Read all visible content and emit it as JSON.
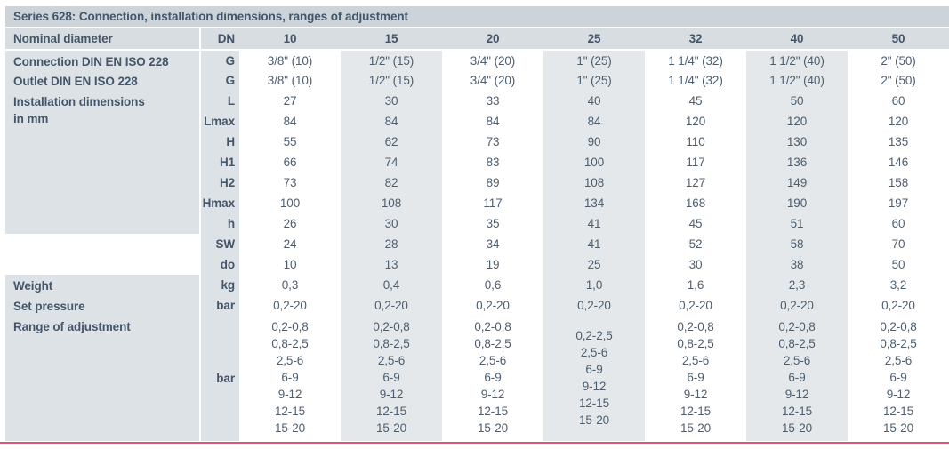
{
  "title": "Series 628: Connection, installation dimensions, ranges of adjustment",
  "columns_header": {
    "label": "Nominal diameter",
    "symbol": "DN",
    "values": [
      "10",
      "15",
      "20",
      "25",
      "32",
      "40",
      "50"
    ]
  },
  "rows": [
    {
      "label": "Connection DIN EN ISO 228",
      "symbol": "G",
      "values": [
        "3/8\" (10)",
        "1/2\" (15)",
        "3/4\" (20)",
        "1\" (25)",
        "1 1/4\" (32)",
        "1 1/2\" (40)",
        "2\" (50)"
      ]
    },
    {
      "label": "Outlet DIN EN ISO 228",
      "symbol": "G",
      "values": [
        "3/8\" (10)",
        "1/2\" (15)",
        "3/4\" (20)",
        "1\" (25)",
        "1 1/4\" (32)",
        "1 1/2\" (40)",
        "2\" (50)"
      ]
    },
    {
      "label_lines": [
        "Installation dimensions",
        "in mm"
      ],
      "label_rowspan": 7,
      "label_variant": "gray",
      "symbol": "L",
      "values": [
        "27",
        "30",
        "33",
        "40",
        "45",
        "50",
        "60"
      ]
    },
    {
      "symbol": "Lmax",
      "values": [
        "84",
        "84",
        "84",
        "84",
        "120",
        "120",
        "120"
      ]
    },
    {
      "symbol": "H",
      "values": [
        "55",
        "62",
        "73",
        "90",
        "110",
        "130",
        "135"
      ]
    },
    {
      "symbol": "H1",
      "values": [
        "66",
        "74",
        "83",
        "100",
        "117",
        "136",
        "146"
      ]
    },
    {
      "symbol": "H2",
      "values": [
        "73",
        "82",
        "89",
        "108",
        "127",
        "149",
        "158"
      ]
    },
    {
      "symbol": "Hmax",
      "values": [
        "100",
        "108",
        "117",
        "134",
        "168",
        "190",
        "197"
      ]
    },
    {
      "symbol": "h",
      "values": [
        "26",
        "30",
        "35",
        "41",
        "45",
        "51",
        "60"
      ]
    },
    {
      "label": "",
      "label_rowspan": 2,
      "label_variant": "white",
      "symbol": "SW",
      "values": [
        "24",
        "28",
        "34",
        "41",
        "52",
        "58",
        "70"
      ]
    },
    {
      "symbol": "do",
      "values": [
        "10",
        "13",
        "19",
        "25",
        "30",
        "38",
        "50"
      ]
    },
    {
      "label": "Weight",
      "symbol": "kg",
      "values": [
        "0,3",
        "0,4",
        "0,6",
        "1,0",
        "1,6",
        "2,3",
        "3,2"
      ]
    },
    {
      "label": "Set pressure",
      "symbol": "bar",
      "values": [
        "0,2-20",
        "0,2-20",
        "0,2-20",
        "0,2-20",
        "0,2-20",
        "0,2-20",
        "0,2-20"
      ]
    },
    {
      "label": "Range of adjustment",
      "symbol": "bar",
      "multiline": true,
      "values": [
        [
          "0,2-0,8",
          "0,8-2,5",
          "2,5-6",
          "6-9",
          "9-12",
          "12-15",
          "15-20"
        ],
        [
          "0,2-0,8",
          "0,8-2,5",
          "2,5-6",
          "6-9",
          "9-12",
          "12-15",
          "15-20"
        ],
        [
          "0,2-0,8",
          "0,8-2,5",
          "2,5-6",
          "6-9",
          "9-12",
          "12-15",
          "15-20"
        ],
        [
          "0,2-2,5",
          "2,5-6",
          "6-9",
          "9-12",
          "12-15",
          "15-20"
        ],
        [
          "0,2-0,8",
          "0,8-2,5",
          "2,5-6",
          "6-9",
          "9-12",
          "12-15",
          "15-20"
        ],
        [
          "0,2-0,8",
          "0,8-2,5",
          "2,5-6",
          "6-9",
          "9-12",
          "12-15",
          "15-20"
        ],
        [
          "0,2-0,8",
          "0,8-2,5",
          "2,5-6",
          "6-9",
          "9-12",
          "12-15",
          "15-20"
        ]
      ]
    }
  ],
  "colors": {
    "titlebar_bg": "#ccd4d9",
    "header_bg": "#d8dde1",
    "label_bg": "#dce2e6",
    "alt_column_bg": "#e4e8ea",
    "text_strong": "#45566a",
    "text_value": "#4d5e70",
    "bottom_rule": "#de5670"
  }
}
